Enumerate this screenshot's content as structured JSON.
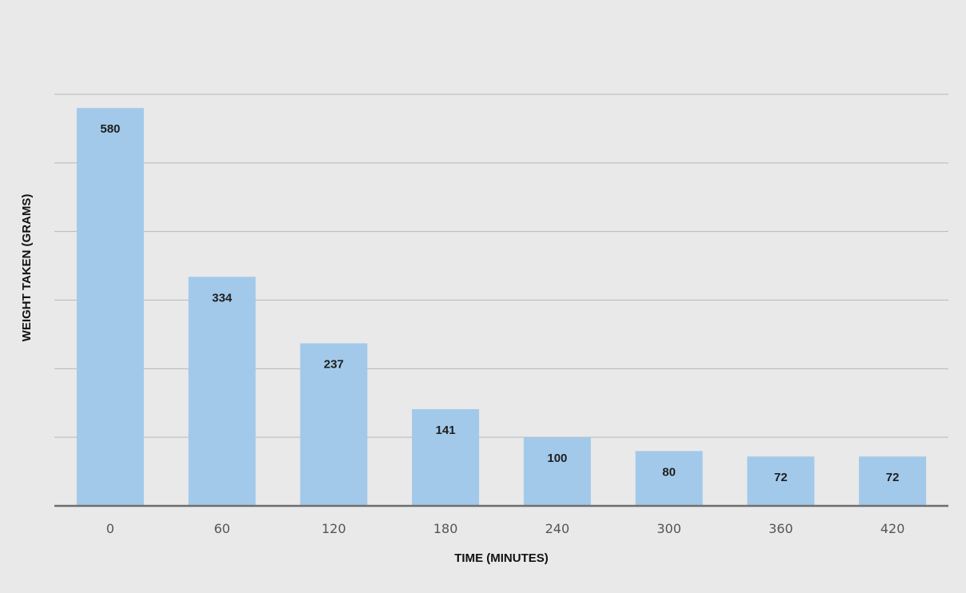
{
  "chart_data": {
    "type": "bar",
    "title": "",
    "xlabel": "TIME (MINUTES)",
    "ylabel": "WEIGHT TAKEN (GRAMS)",
    "categories": [
      "0",
      "60",
      "120",
      "180",
      "240",
      "300",
      "360",
      "420"
    ],
    "values": [
      580,
      334,
      237,
      141,
      100,
      80,
      72,
      72
    ],
    "ylim": [
      0,
      600
    ],
    "grid": true,
    "legend": "none",
    "bar_color": "#a2c9ea"
  }
}
